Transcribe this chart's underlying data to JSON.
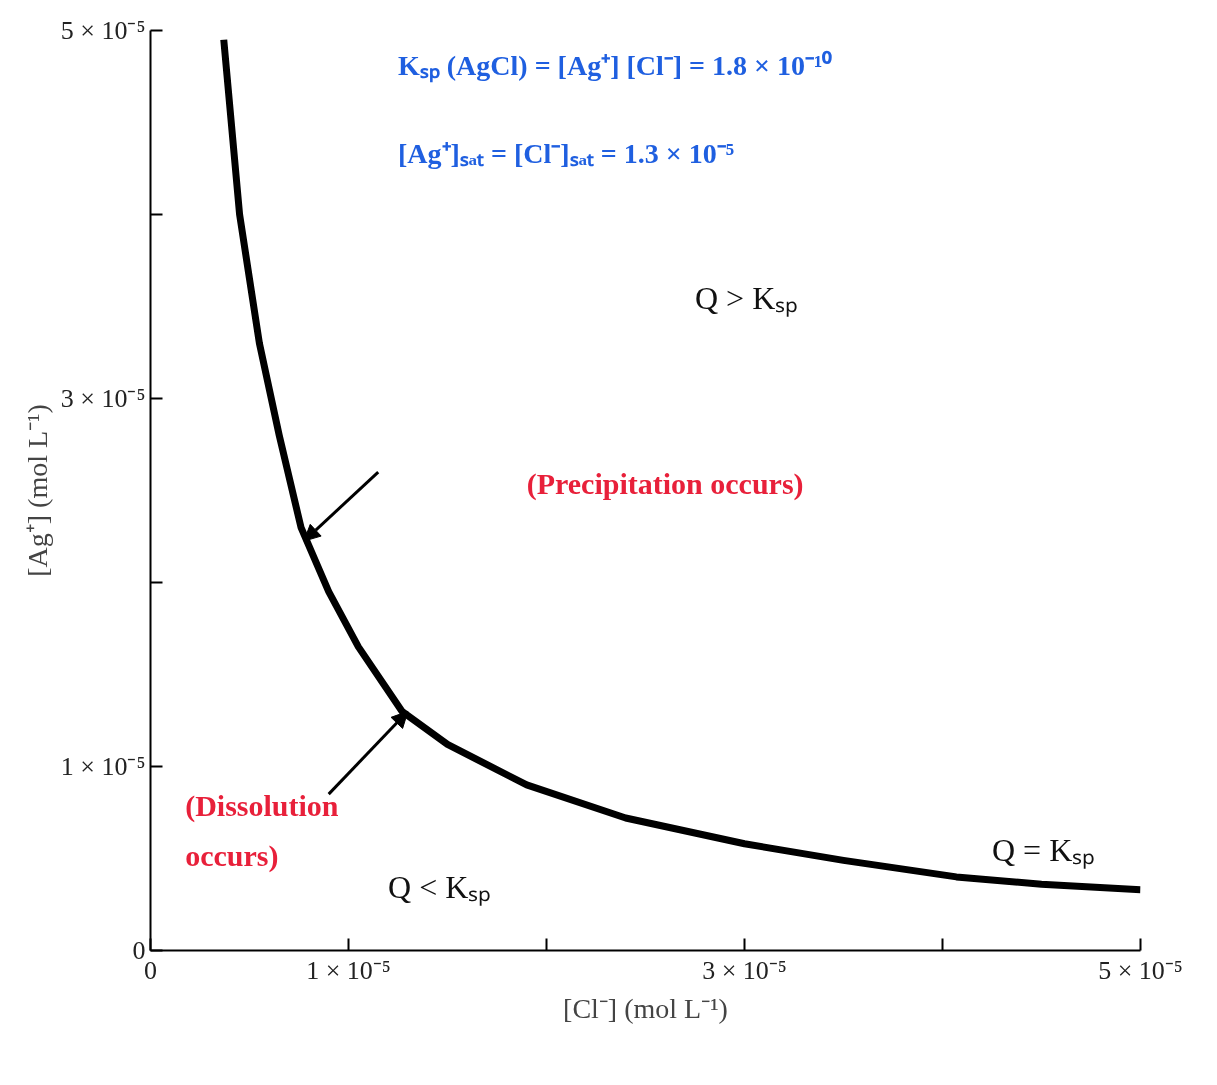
{
  "chart_data": {
    "type": "line",
    "xlabel": "[Cl⁻] (mol L⁻¹)",
    "ylabel": "[Ag⁺] (mol L⁻¹)",
    "x": [
      3.7e-06,
      4.5e-06,
      5.5e-06,
      6.5e-06,
      7.6e-06,
      9e-06,
      1.05e-05,
      1.27e-05,
      1.5e-05,
      1.9e-05,
      2.4e-05,
      3e-05,
      3.5e-05,
      4.07e-05,
      4.5e-05,
      5e-05
    ],
    "series": [
      {
        "color": "#000000",
        "values": [
          4.95e-05,
          4e-05,
          3.3e-05,
          2.8e-05,
          2.3e-05,
          1.95e-05,
          1.65e-05,
          1.3e-05,
          1.12e-05,
          9e-06,
          7.2e-06,
          5.8e-06,
          4.9e-06,
          4e-06,
          3.6e-06,
          3.3e-06
        ]
      }
    ],
    "xlim": [
      0,
      5e-05
    ],
    "ylim": [
      0,
      5e-05
    ],
    "xticks": [
      0,
      {
        "value": 1e-05,
        "label": "1 × 10⁻⁵"
      },
      {
        "value": 2e-05,
        "label": null
      },
      {
        "value": 3e-05,
        "label": "3 × 10⁻⁵"
      },
      {
        "value": 4e-05,
        "label": null
      },
      {
        "value": 5e-05,
        "label": "5 × 10⁻⁵"
      }
    ],
    "yticks": [
      0,
      {
        "value": 1e-05,
        "label": "1 × 10⁻⁵"
      },
      {
        "value": 2e-05,
        "label": null
      },
      {
        "value": 3e-05,
        "label": "3 × 10⁻⁵"
      },
      {
        "value": 4e-05,
        "label": null
      },
      {
        "value": 5e-05,
        "label": "5 × 10⁻⁵"
      }
    ],
    "grid": false,
    "marker": "none",
    "line_style": "solid",
    "annotations": [
      "Kₛₚ (AgCl) = [Ag⁺] [Cl⁻] = 1.8 × 10⁻¹⁰",
      "[Ag⁺]ₛₐₜ = [Cl⁻]ₛₐₜ = 1.3 × 10⁻⁵",
      "Q > Kₛₚ",
      "(Precipitation occurs)",
      {
        "text": "(Dissolution occurs)",
        "x": 1.3e-05,
        "y": 1.3e-05
      },
      "Q < Kₛₚ",
      "Q = Kₛₚ"
    ]
  }
}
